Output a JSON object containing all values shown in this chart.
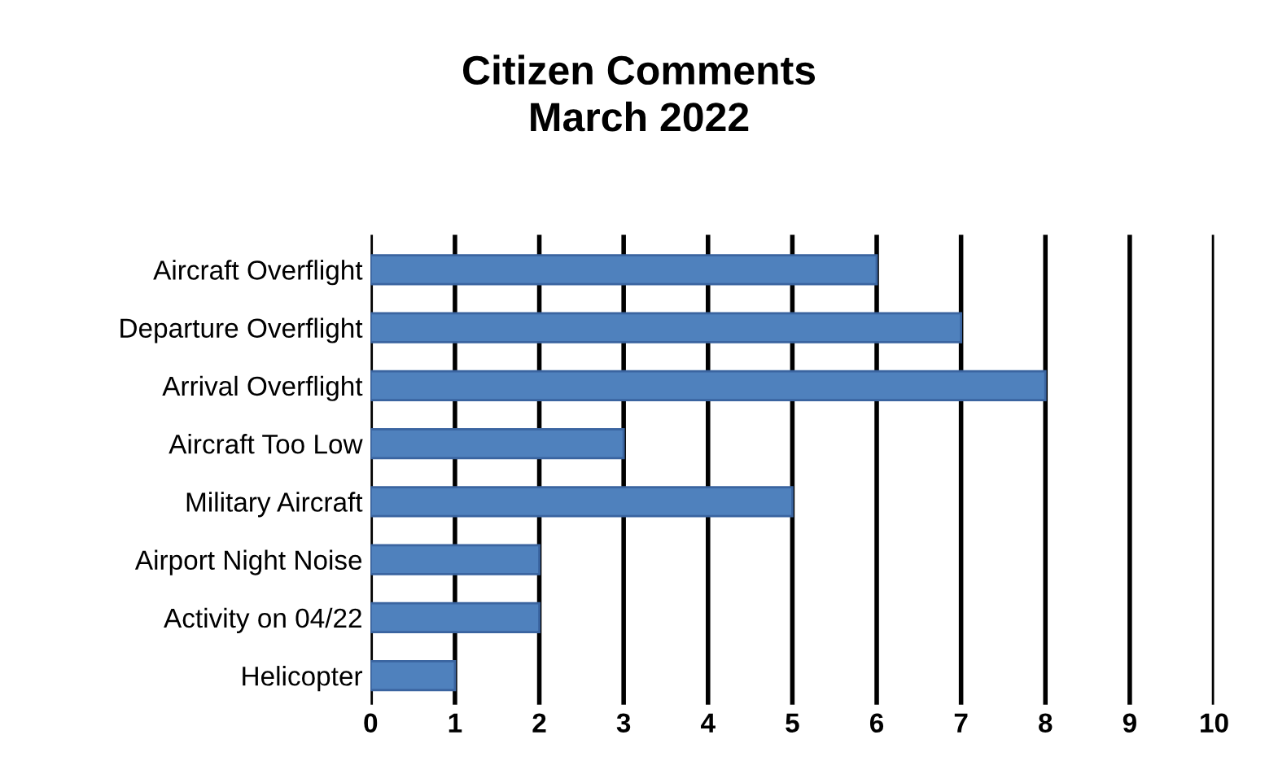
{
  "chart_data": {
    "type": "bar",
    "orientation": "horizontal",
    "title": "Citizen Comments\nMarch 2022",
    "categories": [
      "Aircraft Overflight",
      "Departure Overflight",
      "Arrival Overflight",
      "Aircraft Too Low",
      "Military Aircraft",
      "Airport Night Noise",
      "Activity on 04/22",
      "Helicopter"
    ],
    "values": [
      6,
      7,
      8,
      3,
      5,
      2,
      2,
      1
    ],
    "color": "#4f81bd",
    "xlim": [
      0,
      10
    ],
    "xticks": [
      0,
      1,
      2,
      3,
      4,
      5,
      6,
      7,
      8,
      9,
      10
    ],
    "grid": "x"
  }
}
